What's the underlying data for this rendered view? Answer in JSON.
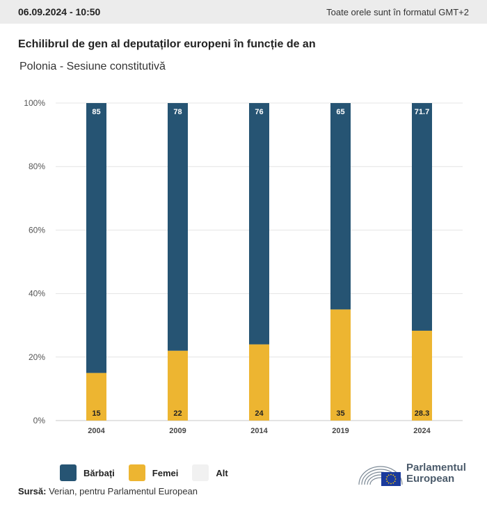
{
  "header": {
    "date": "06.09.2024 - 10:50",
    "timezone_note": "Toate orele sunt în formatul GMT+2"
  },
  "title": "Echilibrul de gen al deputaților europeni în funcție de an",
  "subtitle": "Polonia - Sesiune constitutivă",
  "colors": {
    "men": "#265473",
    "women": "#edb531",
    "other": "#f1f1f1",
    "grid": "#e4e4e4"
  },
  "legend": [
    {
      "label": "Bărbați",
      "color": "#265473"
    },
    {
      "label": "Femei",
      "color": "#edb531"
    },
    {
      "label": "Alt",
      "color": "#f1f1f1"
    }
  ],
  "source": {
    "label": "Sursă:",
    "text": "Verian, pentru Parlamentul European"
  },
  "logo": {
    "line1": "Parlamentul",
    "line2": "European",
    "icon": "eu-parliament-hemicycle-flag-icon"
  },
  "chart_data": {
    "type": "bar",
    "stacked": true,
    "categories": [
      "2004",
      "2009",
      "2014",
      "2019",
      "2024"
    ],
    "series": [
      {
        "name": "Bărbați",
        "values": [
          85,
          78,
          76,
          65,
          71.7
        ],
        "labels": [
          "85",
          "78",
          "76",
          "65",
          "71.7"
        ]
      },
      {
        "name": "Femei",
        "values": [
          15,
          22,
          24,
          35,
          28.3
        ],
        "labels": [
          "15",
          "22",
          "24",
          "35",
          "28.3"
        ]
      },
      {
        "name": "Alt",
        "values": [
          0,
          0,
          0,
          0,
          0
        ]
      }
    ],
    "y_ticks": [
      "0%",
      "20%",
      "40%",
      "60%",
      "80%",
      "100%"
    ],
    "ylim": [
      0,
      100
    ],
    "grid": true,
    "legend_position": "bottom-left"
  }
}
